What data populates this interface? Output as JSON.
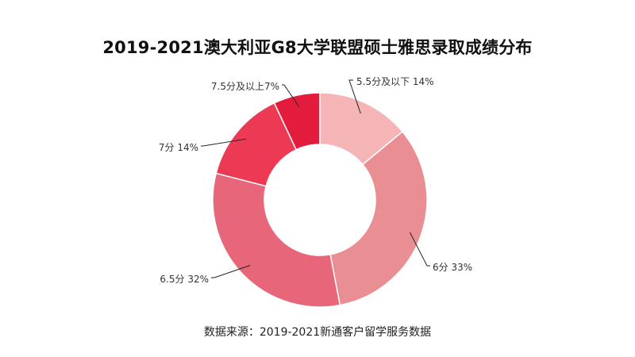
{
  "colors": {
    "background": "#ffffff",
    "slices": [
      "#f5b5b7",
      "#e98e92",
      "#e8667a",
      "#ec3a55",
      "#e31b3c"
    ]
  },
  "chart_data": {
    "type": "pie",
    "title": "2019-2021澳大利亚G8大学联盟硕士雅思录取成绩分布",
    "donut": true,
    "slices": [
      {
        "label": "5.5分及以下",
        "value": 14,
        "display": "5.5分及以下 14%"
      },
      {
        "label": "6分",
        "value": 33,
        "display": "6分 33%"
      },
      {
        "label": "6.5分",
        "value": 32,
        "display": "6.5分 32%"
      },
      {
        "label": "7分",
        "value": 14,
        "display": "7分 14%"
      },
      {
        "label": "7.5分及以上",
        "value": 7,
        "display": "7.5分及以上7%"
      }
    ],
    "source": "数据来源：2019-2021新通客户留学服务数据"
  }
}
